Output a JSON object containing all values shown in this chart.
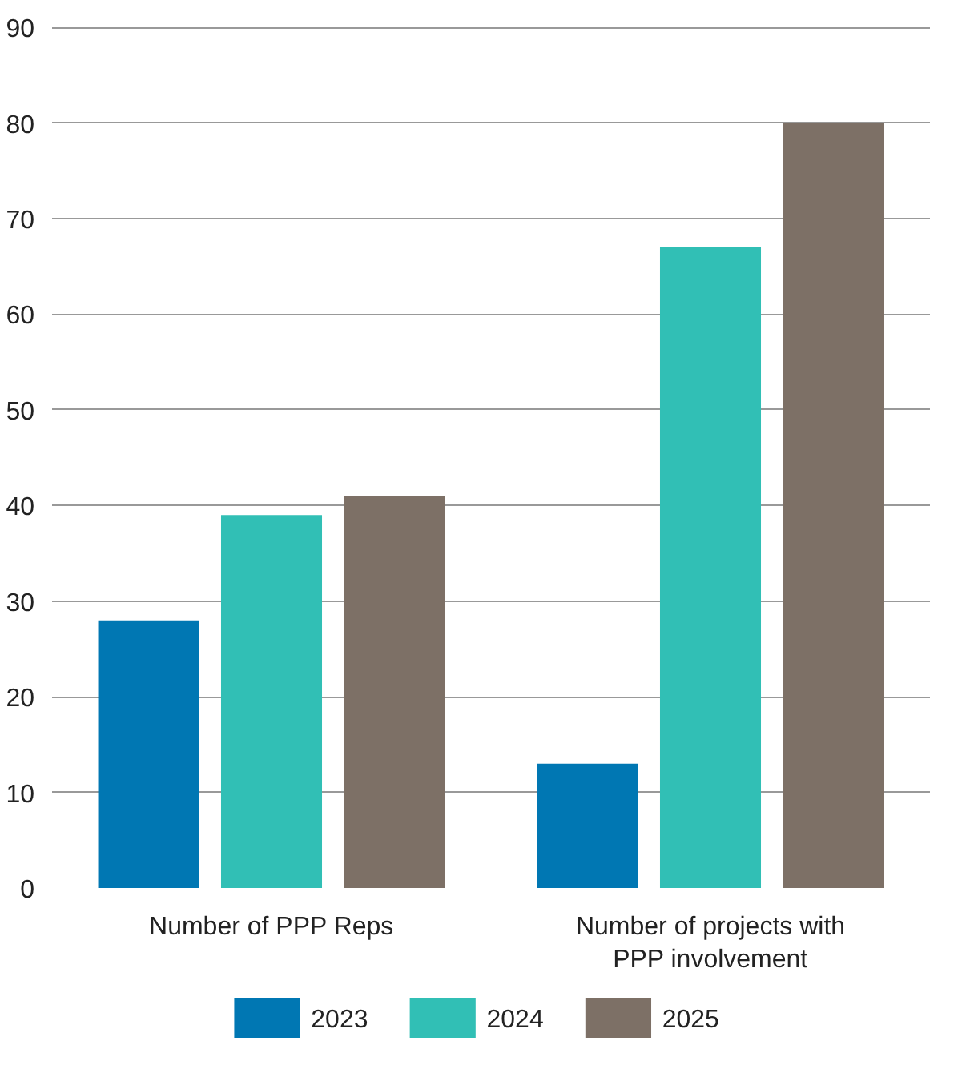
{
  "chart_data": {
    "type": "bar",
    "categories": [
      "Number of PPP Reps",
      "Number of projects with PPP involvement"
    ],
    "series": [
      {
        "name": "2023",
        "color": "#0077b3",
        "values": [
          28,
          13
        ]
      },
      {
        "name": "2024",
        "color": "#31bfb5",
        "values": [
          39,
          67
        ]
      },
      {
        "name": "2025",
        "color": "#7d7066",
        "values": [
          41,
          80
        ]
      }
    ],
    "ylim": [
      0,
      90
    ],
    "yticks": [
      0,
      10,
      20,
      30,
      40,
      50,
      60,
      70,
      80,
      90
    ],
    "grid": "y",
    "legend": "bottom"
  }
}
